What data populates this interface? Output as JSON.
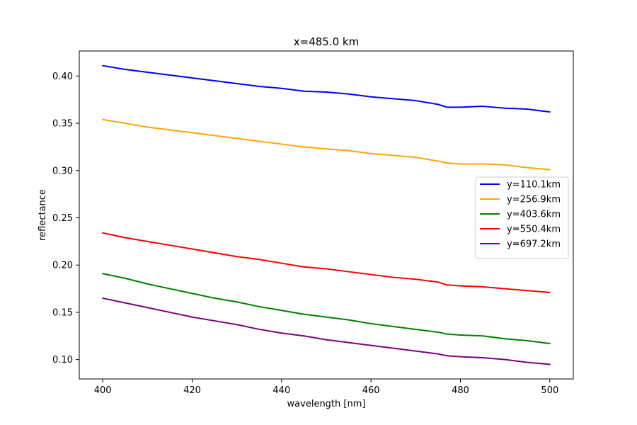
{
  "chart_data": {
    "type": "line",
    "title": "x=485.0 km",
    "xlabel": "wavelength [nm]",
    "ylabel": "reflectance",
    "xlim": [
      394.75,
      505.25
    ],
    "ylim": [
      0.0795,
      0.4265
    ],
    "xticks": [
      400,
      420,
      440,
      460,
      480,
      500
    ],
    "xtick_labels": [
      "400",
      "420",
      "440",
      "460",
      "480",
      "500"
    ],
    "yticks": [
      0.1,
      0.15,
      0.2,
      0.25,
      0.3,
      0.35,
      0.4
    ],
    "ytick_labels": [
      "0.10",
      "0.15",
      "0.20",
      "0.25",
      "0.30",
      "0.35",
      "0.40"
    ],
    "grid": false,
    "legend_position": "center-right",
    "x": [
      400,
      405,
      410,
      415,
      420,
      425,
      430,
      435,
      440,
      445,
      450,
      455,
      460,
      465,
      470,
      475,
      477,
      480,
      485,
      490,
      495,
      500
    ],
    "series": [
      {
        "name": "y=110.1km",
        "color": "#0000ff",
        "values": [
          0.411,
          0.407,
          0.404,
          0.401,
          0.398,
          0.395,
          0.392,
          0.389,
          0.387,
          0.384,
          0.383,
          0.381,
          0.378,
          0.376,
          0.374,
          0.37,
          0.367,
          0.367,
          0.368,
          0.366,
          0.365,
          0.362
        ]
      },
      {
        "name": "y=256.9km",
        "color": "#ffa500",
        "values": [
          0.354,
          0.35,
          0.346,
          0.343,
          0.34,
          0.337,
          0.334,
          0.331,
          0.328,
          0.325,
          0.323,
          0.321,
          0.318,
          0.316,
          0.314,
          0.31,
          0.308,
          0.307,
          0.307,
          0.306,
          0.303,
          0.301
        ]
      },
      {
        "name": "y=403.6km",
        "color": "#008000",
        "values": [
          0.191,
          0.186,
          0.18,
          0.175,
          0.17,
          0.165,
          0.161,
          0.156,
          0.152,
          0.148,
          0.145,
          0.142,
          0.138,
          0.135,
          0.132,
          0.129,
          0.127,
          0.126,
          0.125,
          0.122,
          0.12,
          0.117
        ]
      },
      {
        "name": "y=550.4km",
        "color": "#ff0000",
        "values": [
          0.234,
          0.229,
          0.225,
          0.221,
          0.217,
          0.213,
          0.209,
          0.206,
          0.202,
          0.198,
          0.196,
          0.193,
          0.19,
          0.187,
          0.185,
          0.182,
          0.179,
          0.178,
          0.177,
          0.175,
          0.173,
          0.171
        ]
      },
      {
        "name": "y=697.2km",
        "color": "#800080",
        "values": [
          0.165,
          0.16,
          0.155,
          0.15,
          0.145,
          0.141,
          0.137,
          0.132,
          0.128,
          0.125,
          0.121,
          0.118,
          0.115,
          0.112,
          0.109,
          0.106,
          0.104,
          0.103,
          0.102,
          0.1,
          0.097,
          0.095
        ]
      }
    ]
  }
}
